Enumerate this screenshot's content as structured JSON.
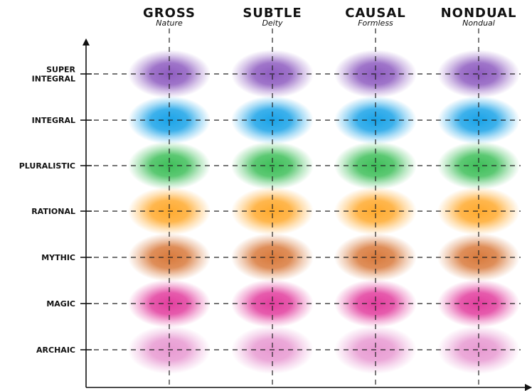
{
  "diagram": {
    "columns": [
      {
        "title": "GROSS",
        "subtitle": "Nature"
      },
      {
        "title": "SUBTLE",
        "subtitle": "Deity"
      },
      {
        "title": "CAUSAL",
        "subtitle": "Formless"
      },
      {
        "title": "NONDUAL",
        "subtitle": "Nondual"
      }
    ],
    "rows": [
      {
        "label_lines": [
          "SUPER",
          "INTEGRAL"
        ],
        "color": "#8e5cc0"
      },
      {
        "label_lines": [
          "INTEGRAL"
        ],
        "color": "#1aa3e8"
      },
      {
        "label_lines": [
          "PLURALISTIC"
        ],
        "color": "#3fbf5a"
      },
      {
        "label_lines": [
          "RATIONAL"
        ],
        "color": "#ffaa2e"
      },
      {
        "label_lines": [
          "MYTHIC"
        ],
        "color": "#d97a3c"
      },
      {
        "label_lines": [
          "MAGIC"
        ],
        "color": "#e23e9e"
      },
      {
        "label_lines": [
          "ARCHAIC"
        ],
        "color": "#e89ad2"
      }
    ]
  }
}
